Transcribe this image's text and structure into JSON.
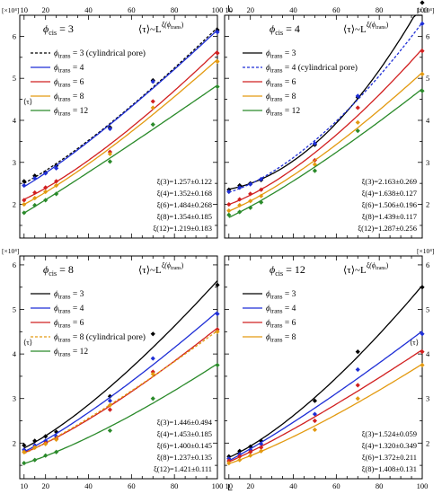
{
  "figure": {
    "top_axis_label": "L",
    "bottom_axis_label": "L",
    "top_ticks": [
      10,
      20,
      40,
      60,
      80,
      100
    ],
    "bottom_ticks": [
      10,
      20,
      40,
      60,
      80,
      100
    ],
    "colors": {
      "3": "#000000",
      "4": "#1f2fd6",
      "6": "#d12020",
      "8": "#e39a10",
      "12": "#2a8a2a"
    }
  },
  "chart_data": [
    {
      "type": "line",
      "title": "ϕcis = 3",
      "title_symbol": "ϕ",
      "title_sub": "cis",
      "title_value": " = 3",
      "law_text": "⟨τ⟩~L",
      "law_exp_main": "ξ(ϕ",
      "law_exp_sub": "trans",
      "law_exp_close": ")",
      "ylabel": "⟨τ⟩",
      "yscale_label": "[×10⁴]",
      "xlim": [
        8,
        100
      ],
      "ylim": [
        1.2,
        6.5
      ],
      "yticks": [
        2,
        3,
        4,
        5,
        6
      ],
      "legend_sub": "trans",
      "legend": [
        {
          "key": "3",
          "text": " = 3 (cylindrical pore)",
          "dashed": true
        },
        {
          "key": "4",
          "text": " = 4",
          "dashed": false
        },
        {
          "key": "6",
          "text": " = 6",
          "dashed": false
        },
        {
          "key": "8",
          "text": " = 8",
          "dashed": false
        },
        {
          "key": "12",
          "text": " = 12",
          "dashed": false
        }
      ],
      "fits": [
        "ξ(3)=1.257±0.122",
        "ξ(4)=1.352±0.168",
        "ξ(6)=1.484±0.268",
        "ξ(8)=1.354±0.185",
        "ξ(12)=1.219±0.183"
      ],
      "x": [
        10,
        15,
        20,
        25,
        50,
        70,
        100
      ],
      "series": [
        {
          "name": "3",
          "dashed": true,
          "values": [
            2.55,
            2.68,
            2.76,
            2.92,
            3.83,
            4.95,
            6.15
          ]
        },
        {
          "name": "4",
          "dashed": false,
          "values": [
            2.45,
            2.62,
            2.74,
            2.86,
            3.8,
            4.92,
            6.1
          ]
        },
        {
          "name": "6",
          "dashed": false,
          "values": [
            2.1,
            2.28,
            2.4,
            2.55,
            3.25,
            4.45,
            5.6
          ]
        },
        {
          "name": "8",
          "dashed": false,
          "values": [
            2.0,
            2.15,
            2.3,
            2.45,
            3.2,
            4.3,
            5.4
          ]
        },
        {
          "name": "12",
          "dashed": false,
          "values": [
            1.8,
            1.98,
            2.1,
            2.25,
            3.02,
            3.9,
            4.8
          ]
        }
      ]
    },
    {
      "type": "line",
      "title": "ϕcis = 4",
      "title_symbol": "ϕ",
      "title_sub": "cis",
      "title_value": " = 4",
      "law_text": "⟨τ⟩~L",
      "law_exp_main": "ξ(ϕ",
      "law_exp_sub": "trans",
      "law_exp_close": ")",
      "ylabel": "",
      "yscale_label": "[×10⁴]",
      "xlim": [
        8,
        100
      ],
      "ylim": [
        1.2,
        6.5
      ],
      "yticks": [
        2,
        3,
        4,
        5,
        6
      ],
      "legend_sub": "trans",
      "legend": [
        {
          "key": "3",
          "text": " = 3",
          "dashed": false
        },
        {
          "key": "4",
          "text": " = 4 (cylindrical pore)",
          "dashed": true
        },
        {
          "key": "6",
          "text": " = 6",
          "dashed": false
        },
        {
          "key": "8",
          "text": " = 8",
          "dashed": false
        },
        {
          "key": "12",
          "text": " = 12",
          "dashed": false
        }
      ],
      "fits": [
        "ξ(3)=2.163±0.269",
        "ξ(4)=1.638±0.127",
        "ξ(6)=1.506±0.196",
        "ξ(8)=1.439±0.117",
        "ξ(12)=1.287±0.256"
      ],
      "x": [
        10,
        15,
        20,
        25,
        50,
        70,
        100
      ],
      "series": [
        {
          "name": "3",
          "dashed": false,
          "values": [
            2.35,
            2.45,
            2.5,
            2.58,
            3.42,
            4.55,
            6.8
          ]
        },
        {
          "name": "4",
          "dashed": true,
          "values": [
            2.3,
            2.4,
            2.48,
            2.6,
            3.45,
            4.58,
            6.3
          ]
        },
        {
          "name": "6",
          "dashed": false,
          "values": [
            2.0,
            2.12,
            2.25,
            2.35,
            3.05,
            4.3,
            5.65
          ]
        },
        {
          "name": "8",
          "dashed": false,
          "values": [
            1.85,
            1.98,
            2.08,
            2.2,
            2.95,
            3.95,
            5.1
          ]
        },
        {
          "name": "12",
          "dashed": false,
          "values": [
            1.75,
            1.82,
            1.92,
            2.05,
            2.8,
            3.75,
            4.7
          ]
        }
      ]
    },
    {
      "type": "line",
      "title": "ϕcis = 8",
      "title_symbol": "ϕ",
      "title_sub": "cis",
      "title_value": " = 8",
      "law_text": "⟨τ⟩~L",
      "law_exp_main": "ξ(ϕ",
      "law_exp_sub": "trans",
      "law_exp_close": ")",
      "ylabel": "⟨τ⟩",
      "yscale_label": "[×10⁴]",
      "xlim": [
        8,
        100
      ],
      "ylim": [
        1.2,
        6.2
      ],
      "yticks": [
        2,
        3,
        4,
        5,
        6
      ],
      "legend_sub": "trans",
      "legend": [
        {
          "key": "3",
          "text": " = 3",
          "dashed": false
        },
        {
          "key": "4",
          "text": " = 4",
          "dashed": false
        },
        {
          "key": "6",
          "text": " = 6",
          "dashed": false
        },
        {
          "key": "8",
          "text": " = 8 (cylindrical pore)",
          "dashed": true
        },
        {
          "key": "12",
          "text": " = 12",
          "dashed": false
        }
      ],
      "fits": [
        "ξ(3)=1.446±0.494",
        "ξ(4)=1.453±0.185",
        "ξ(6)=1.400±0.145",
        "ξ(8)=1.237±0.135",
        "ξ(12)=1.421±0.111"
      ],
      "x": [
        10,
        15,
        20,
        25,
        50,
        70,
        100
      ],
      "series": [
        {
          "name": "3",
          "dashed": false,
          "values": [
            1.95,
            2.05,
            2.15,
            2.25,
            3.05,
            4.45,
            5.55
          ]
        },
        {
          "name": "4",
          "dashed": false,
          "values": [
            1.85,
            1.95,
            2.05,
            2.15,
            2.95,
            3.9,
            4.9
          ]
        },
        {
          "name": "6",
          "dashed": false,
          "values": [
            1.8,
            1.9,
            2.0,
            2.1,
            2.75,
            3.6,
            4.55
          ]
        },
        {
          "name": "8",
          "dashed": true,
          "values": [
            1.8,
            1.9,
            1.98,
            2.08,
            2.85,
            3.55,
            4.5
          ]
        },
        {
          "name": "12",
          "dashed": false,
          "values": [
            1.55,
            1.62,
            1.72,
            1.8,
            2.28,
            3.0,
            3.75
          ]
        }
      ]
    },
    {
      "type": "line",
      "title": "ϕcis = 12",
      "title_symbol": "ϕ",
      "title_sub": "cis",
      "title_value": " = 12",
      "law_text": "⟨τ⟩~L",
      "law_exp_main": "ξ(ϕ",
      "law_exp_sub": "trans",
      "law_exp_close": ")",
      "ylabel": "⟨τ⟩",
      "yscale_label": "[×10⁴]",
      "xlim": [
        8,
        100
      ],
      "ylim": [
        1.2,
        6.2
      ],
      "yticks": [
        2,
        3,
        4,
        5,
        6
      ],
      "legend_sub": "trans",
      "legend": [
        {
          "key": "3",
          "text": " = 3",
          "dashed": false
        },
        {
          "key": "4",
          "text": " = 4",
          "dashed": false
        },
        {
          "key": "6",
          "text": " = 6",
          "dashed": false
        },
        {
          "key": "8",
          "text": " = 8",
          "dashed": false
        }
      ],
      "fits": [
        "ξ(3)=1.524±0.059",
        "ξ(4)=1.320±0.349",
        "ξ(6)=1.372±0.211",
        "ξ(8)=1.408±0.131"
      ],
      "x": [
        10,
        15,
        20,
        25,
        50,
        70,
        100
      ],
      "series": [
        {
          "name": "3",
          "dashed": false,
          "values": [
            1.7,
            1.82,
            1.92,
            2.05,
            2.95,
            4.05,
            5.5
          ]
        },
        {
          "name": "4",
          "dashed": false,
          "values": [
            1.65,
            1.75,
            1.85,
            1.98,
            2.65,
            3.65,
            4.45
          ]
        },
        {
          "name": "6",
          "dashed": false,
          "values": [
            1.6,
            1.7,
            1.8,
            1.9,
            2.5,
            3.3,
            4.05
          ]
        },
        {
          "name": "8",
          "dashed": false,
          "values": [
            1.55,
            1.62,
            1.72,
            1.82,
            2.3,
            3.0,
            3.75
          ]
        }
      ]
    }
  ]
}
